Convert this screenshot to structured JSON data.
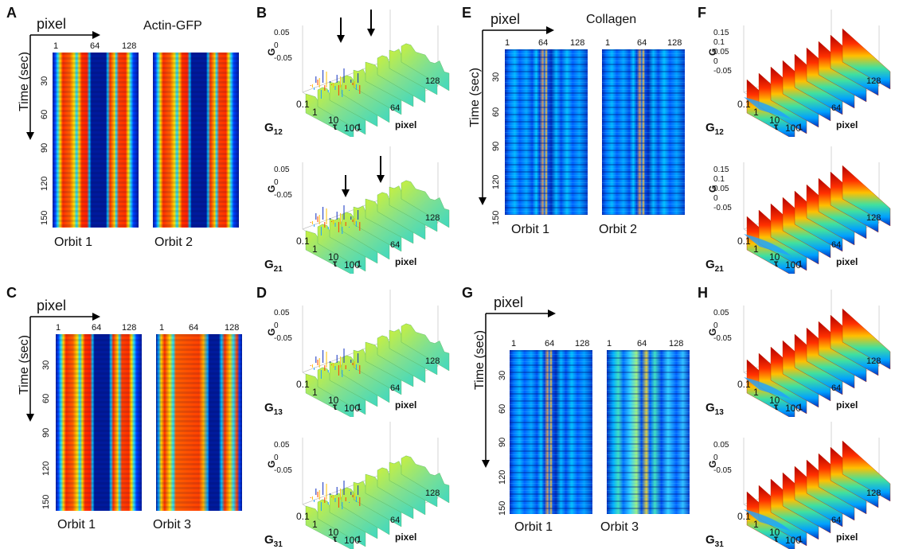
{
  "panels": {
    "A": {
      "letter": "A",
      "axis_x": "pixel",
      "title": "Actin-GFP",
      "ylabel": "Time (sec)",
      "xticks": [
        "1",
        "64",
        "128"
      ],
      "yticks": [
        "30",
        "60",
        "90",
        "120",
        "150"
      ],
      "orbits": [
        "Orbit 1",
        "Orbit 2"
      ]
    },
    "B": {
      "letter": "B",
      "g_top": "G",
      "g_bot": "G",
      "labels": [
        {
          "main": "G",
          "sub": "12"
        },
        {
          "main": "G",
          "sub": "21"
        }
      ],
      "yticks": [
        "0.05",
        "0",
        "-0.05"
      ],
      "tau_ticks": [
        "0.1",
        "1",
        "10",
        "100"
      ],
      "tau": "τ",
      "px_ticks": [
        "1",
        "64",
        "128"
      ],
      "px": "pixel"
    },
    "C": {
      "letter": "C",
      "axis_x": "pixel",
      "ylabel": "Time (sec)",
      "xticks": [
        "1",
        "64",
        "128"
      ],
      "xticks2": [
        "1",
        "64",
        "128"
      ],
      "yticks": [
        "30",
        "60",
        "90",
        "120",
        "150"
      ],
      "orbits": [
        "Orbit 1",
        "Orbit 3"
      ]
    },
    "D": {
      "letter": "D",
      "labels": [
        {
          "main": "G",
          "sub": "13"
        },
        {
          "main": "G",
          "sub": "31"
        }
      ],
      "yticks": [
        "0.05",
        "0",
        "-0.05"
      ],
      "tau_ticks": [
        "0.1",
        "1",
        "10",
        "100"
      ],
      "tau": "τ",
      "px_ticks": [
        "1",
        "64",
        "128"
      ],
      "px": "pixel",
      "g": "G"
    },
    "E": {
      "letter": "E",
      "axis_x": "pixel",
      "title": "Collagen",
      "ylabel": "Time (sec)",
      "xticks": [
        "1",
        "64",
        "128"
      ],
      "yticks": [
        "30",
        "60",
        "90",
        "120",
        "150"
      ],
      "orbits": [
        "Orbit 1",
        "Orbit 2"
      ]
    },
    "F": {
      "letter": "F",
      "labels": [
        {
          "main": "G",
          "sub": "12"
        },
        {
          "main": "G",
          "sub": "21"
        }
      ],
      "yticks": [
        "0.15",
        "0.1",
        "0.05",
        "0",
        "-0.05"
      ],
      "tau_ticks": [
        "0.1",
        "1",
        "10",
        "100"
      ],
      "tau": "τ",
      "px_ticks": [
        "1",
        "64",
        "128"
      ],
      "px": "pixel",
      "g": "G"
    },
    "G": {
      "letter": "G",
      "axis_x": "pixel",
      "ylabel": "Time (sec)",
      "xticks": [
        "1",
        "64",
        "128"
      ],
      "yticks": [
        "30",
        "60",
        "90",
        "120",
        "150"
      ],
      "orbits": [
        "Orbit 1",
        "Orbit 3"
      ]
    },
    "H": {
      "letter": "H",
      "labels": [
        {
          "main": "G",
          "sub": "13"
        },
        {
          "main": "G",
          "sub": "31"
        }
      ],
      "yticks": [
        "0.05",
        "0",
        "-0.05"
      ],
      "tau_ticks": [
        "0.1",
        "1",
        "10",
        "100"
      ],
      "tau": "τ",
      "px_ticks": [
        "1",
        "64",
        "128"
      ],
      "px": "pixel",
      "g": "G"
    }
  },
  "colors": {
    "jet_dark": "#00008f",
    "jet_blue": "#0040ff",
    "jet_cyan": "#00e0ff",
    "jet_yellow": "#ffe000",
    "jet_red": "#ff2000",
    "jet_darkred": "#9a0000"
  }
}
